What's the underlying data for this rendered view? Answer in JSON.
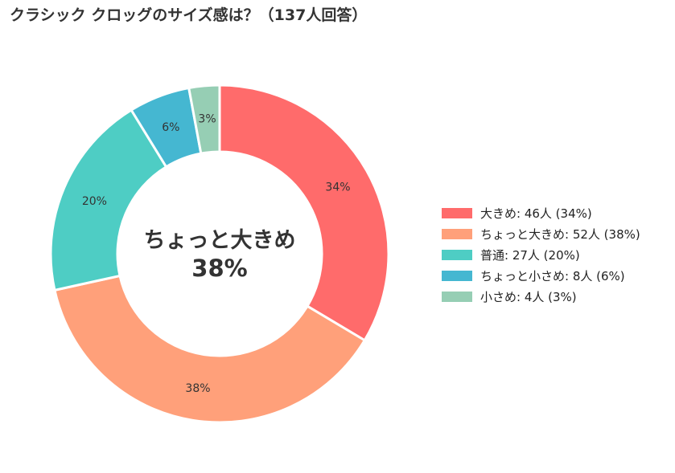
{
  "chart_data": {
    "type": "pie",
    "style": "donut",
    "title": "クラシック クロッグのサイズ感は？（137人回答）",
    "categories": [
      "大きめ",
      "ちょっと大きめ",
      "普通",
      "ちょっと小さめ",
      "小さめ"
    ],
    "values": [
      46,
      52,
      27,
      8,
      4
    ],
    "percent_labels": [
      "34%",
      "38%",
      "20%",
      "6%",
      "3%"
    ],
    "colors": [
      "#ff6b6b",
      "#ffa07a",
      "#4ecdc4",
      "#45b7d1",
      "#96ceb4"
    ],
    "center": {
      "label": "ちょっと大きめ",
      "value": "38%"
    },
    "legend": {
      "placement": "right",
      "entries": [
        "大きめ:  46人 (34%)",
        "ちょっと大きめ:  52人 (38%)",
        "普通:  27人 (20%)",
        "ちょっと小さめ:  8人 (6%)",
        "小さめ:  4人 (3%)"
      ]
    }
  }
}
